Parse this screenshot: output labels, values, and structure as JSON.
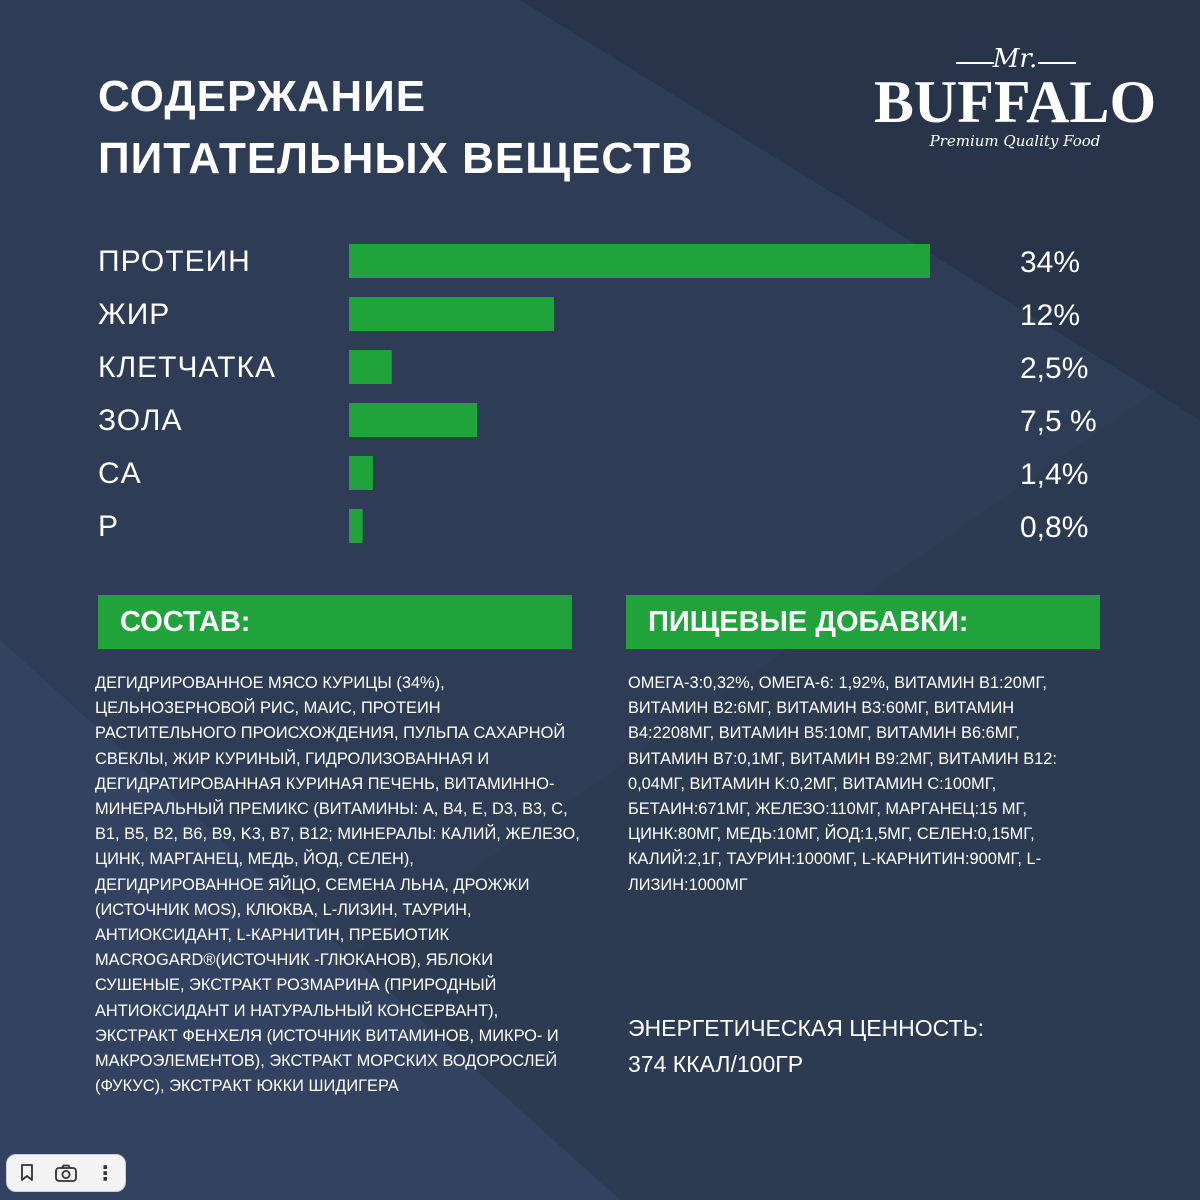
{
  "title": {
    "line1": "СОДЕРЖАНИЕ",
    "line2": "ПИТАТЕЛЬНЫХ ВЕЩЕСТВ"
  },
  "logo": {
    "mr": "Mr.",
    "name": "BUFFALO",
    "tagline": "Premium Quality Food"
  },
  "colors": {
    "background": "#2c3a52",
    "background_dark": "#233048",
    "background_light": "#34425c",
    "bar_green": "#1fa33a",
    "text": "#ffffff"
  },
  "chart_data": {
    "type": "bar",
    "orientation": "horizontal",
    "categories": [
      "ПРОТЕИН",
      "ЖИР",
      "КЛЕТЧАТКА",
      "ЗОЛА",
      "CA",
      "P"
    ],
    "values": [
      34,
      12,
      2.5,
      7.5,
      1.4,
      0.8
    ],
    "value_labels": [
      "34%",
      "12%",
      "2,5%",
      "7,5 %",
      "1,4%",
      "0,8%"
    ],
    "unit": "%",
    "xlim": [
      0,
      34
    ],
    "grid": false
  },
  "sostav": {
    "header": "СОСТАВ:",
    "text": "Дегидрированное мясо курицы (34%), цельнозерновой рис, маис, протеин растительного происхождения, пульпа сахарной свеклы, жир куриный, гидролизованная и дегидратированная куриная печень, витаминно-минеральный премикс (витамины: A, B4, E, D3, B3, C, B1, B5, B2, B6, B9, K3, B7, B12; минералы: калий, железо, цинк, марганец, медь, йод, селен), дегидрированное яйцо, семена льна, дрожжи (источник MOS), клюква, L-лизин, таурин, антиоксидант, L-карнитин, пребиотик MACROGARD®(источник -глюканов), яблоки сушеные, экстракт розмарина (природный антиоксидант и натуральный консервант), экстракт фенхеля (источник витаминов, микро- и макроэлементов), экстракт морских водорослей (фукус), экстракт юкки шидигера"
  },
  "dobavki": {
    "header": "ПИЩЕВЫЕ ДОБАВКИ:",
    "text": "Омега-3:0,32%, Омега-6: 1,92%, витамин B1:20мг, витамин B2:6мг, витамин B3:60мг, витамин B4:2208мг, витамин B5:10мг, витамин B6:6мг, витамин B7:0,1мг, витамин B9:2мг, витамин B12: 0,04мг, витамин K:0,2мг, витамин C:100мг, бетаин:671мг, железо:110мг, марганец:15 мг, цинк:80мг, медь:10мг, йод:1,5мг, селен:0,15мг, калий:2,1г, таурин:1000мг, L-карнитин:900мг, L-лизин:1000мг"
  },
  "energy": {
    "label": "ЭНЕРГЕТИЧЕСКАЯ ЦЕННОСТЬ:",
    "value": "374 ККАЛ/100ГР"
  },
  "toolbar": {
    "bookmark_icon": "bookmark-icon",
    "camera_icon": "camera-icon",
    "more_icon": "more-vertical-icon",
    "more_glyph": "⋮"
  }
}
